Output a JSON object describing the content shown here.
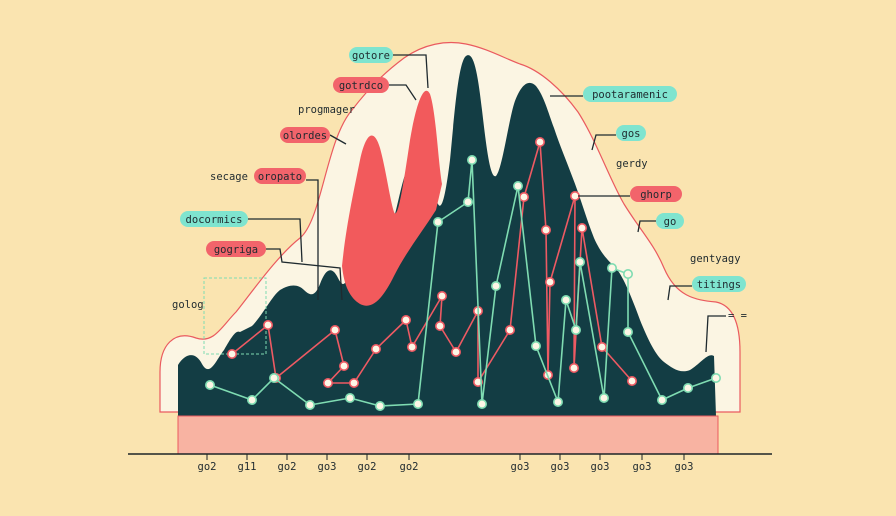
{
  "colors": {
    "background": "#fae4b0",
    "halo": "#fbf5e3",
    "halo_outline": "#ea5a5f",
    "mountain": "#133d44",
    "red_peak": "#f25a5c",
    "base_band": "#f8b3a2",
    "red_series": "#ee5a63",
    "green_series": "#7fdcb2",
    "teal_tag": "#7fe4cf",
    "red_tag": "#f2646b",
    "text": "#1f2a2f"
  },
  "chart_data": {
    "type": "line",
    "title": "",
    "xlabel": "",
    "ylabel": "",
    "x_tick_labels": [
      "go2",
      "g11",
      "go2",
      "go3",
      "go2",
      "go2",
      "go3",
      "go3",
      "go3",
      "go3",
      "go3"
    ],
    "series": [
      {
        "color": "red",
        "points": [
          [
            232,
            354
          ],
          [
            268,
            325
          ],
          [
            276,
            378
          ],
          [
            335,
            330
          ],
          [
            344,
            366
          ],
          [
            328,
            383
          ],
          [
            354,
            383
          ],
          [
            376,
            349
          ],
          [
            406,
            320
          ],
          [
            412,
            347
          ],
          [
            442,
            296
          ],
          [
            440,
            326
          ],
          [
            456,
            352
          ],
          [
            478,
            311
          ],
          [
            478,
            382
          ],
          [
            510,
            330
          ],
          [
            524,
            197
          ],
          [
            540,
            142
          ],
          [
            546,
            230
          ],
          [
            548,
            375
          ],
          [
            550,
            282
          ],
          [
            575,
            196
          ],
          [
            574,
            368
          ],
          [
            582,
            228
          ],
          [
            602,
            347
          ],
          [
            632,
            381
          ]
        ]
      },
      {
        "color": "green",
        "points": [
          [
            210,
            385
          ],
          [
            252,
            400
          ],
          [
            274,
            378
          ],
          [
            310,
            405
          ],
          [
            350,
            398
          ],
          [
            380,
            406
          ],
          [
            418,
            404
          ],
          [
            438,
            222
          ],
          [
            468,
            202
          ],
          [
            472,
            160
          ],
          [
            482,
            404
          ],
          [
            496,
            286
          ],
          [
            518,
            186
          ],
          [
            536,
            346
          ],
          [
            558,
            402
          ],
          [
            566,
            300
          ],
          [
            576,
            330
          ],
          [
            580,
            262
          ],
          [
            604,
            398
          ],
          [
            612,
            268
          ],
          [
            628,
            274
          ],
          [
            628,
            332
          ],
          [
            662,
            400
          ],
          [
            688,
            388
          ],
          [
            716,
            378
          ]
        ]
      }
    ],
    "annotations": [
      {
        "text": "gotore",
        "style": "teal"
      },
      {
        "text": "gotrdco",
        "style": "red"
      },
      {
        "text": "progmager",
        "style": "plain"
      },
      {
        "text": "olordes",
        "style": "red"
      },
      {
        "text": "secage",
        "style": "plain"
      },
      {
        "text": "oropato",
        "style": "red"
      },
      {
        "text": "docormics",
        "style": "teal"
      },
      {
        "text": "gogriga",
        "style": "red"
      },
      {
        "text": "golog",
        "style": "plain"
      },
      {
        "text": "pootaramenic",
        "style": "teal"
      },
      {
        "text": "gos",
        "style": "teal"
      },
      {
        "text": "gerdy",
        "style": "plain"
      },
      {
        "text": "ghorp",
        "style": "red"
      },
      {
        "text": "go",
        "style": "teal"
      },
      {
        "text": "gentyagy",
        "style": "plain"
      },
      {
        "text": "titings",
        "style": "teal"
      },
      {
        "text": "= =",
        "style": "plain"
      }
    ]
  }
}
